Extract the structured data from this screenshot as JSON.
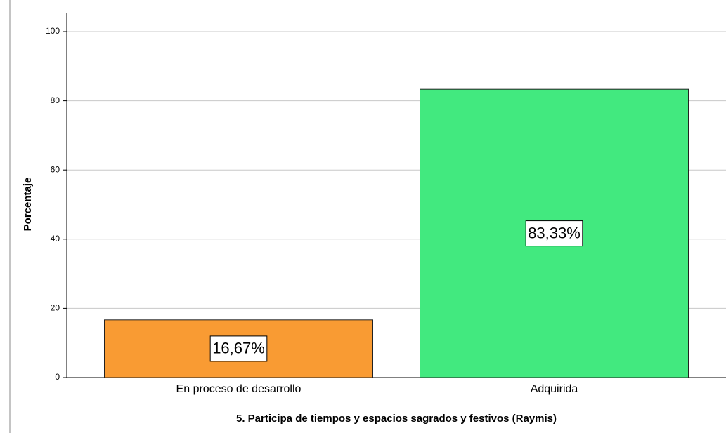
{
  "chart_data": {
    "type": "bar",
    "xlabel": "5. Participa de tiempos y espacios sagrados y festivos (Raymis)",
    "ylabel": "Porcentaje",
    "categories": [
      "En proceso de desarrollo",
      "Adquirida"
    ],
    "values": [
      16.67,
      83.33
    ],
    "value_labels": [
      "16,67%",
      "83,33%"
    ],
    "colors": [
      "#f99b33",
      "#42e97f"
    ],
    "ylim": [
      0,
      100
    ],
    "yticks": [
      0,
      20,
      40,
      60,
      80,
      100
    ],
    "grid": true
  }
}
